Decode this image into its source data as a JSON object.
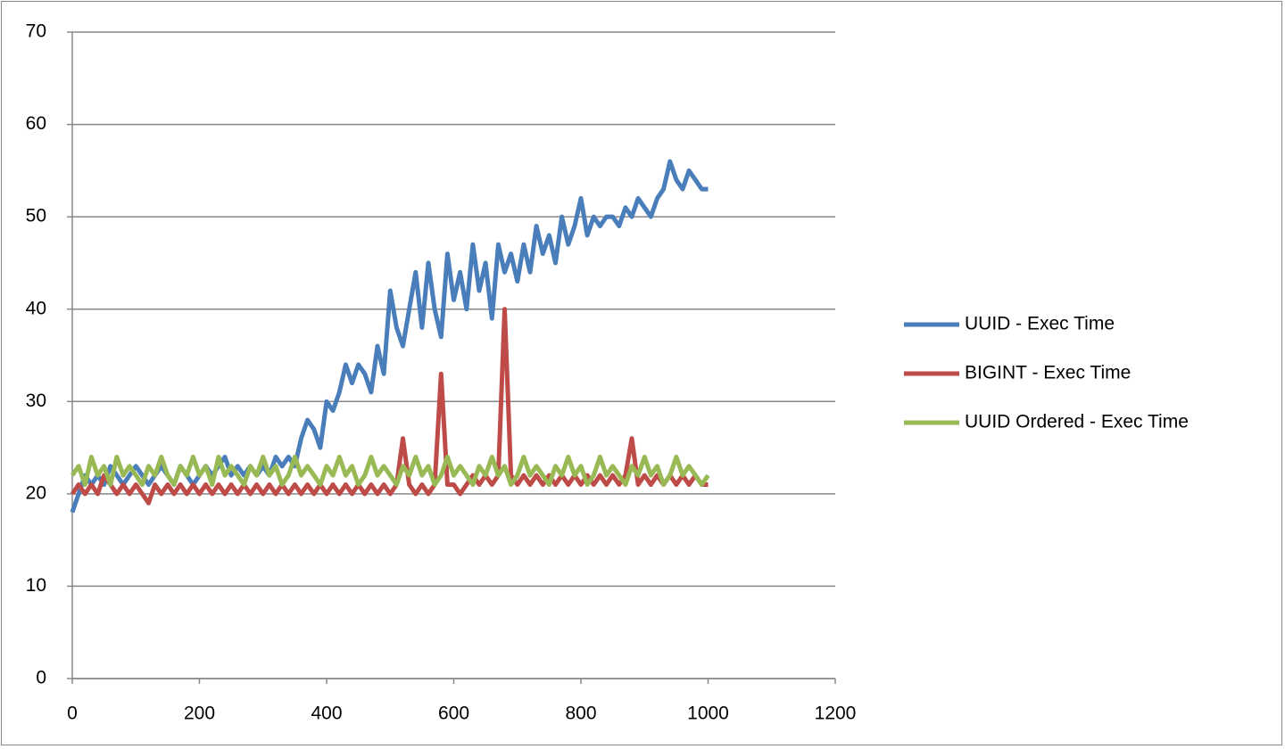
{
  "chart_data": {
    "type": "line",
    "x": [
      0,
      10,
      20,
      30,
      40,
      50,
      60,
      70,
      80,
      90,
      100,
      110,
      120,
      130,
      140,
      150,
      160,
      170,
      180,
      190,
      200,
      210,
      220,
      230,
      240,
      250,
      260,
      270,
      280,
      290,
      300,
      310,
      320,
      330,
      340,
      350,
      360,
      370,
      380,
      390,
      400,
      410,
      420,
      430,
      440,
      450,
      460,
      470,
      480,
      490,
      500,
      510,
      520,
      530,
      540,
      550,
      560,
      570,
      580,
      590,
      600,
      610,
      620,
      630,
      640,
      650,
      660,
      670,
      680,
      690,
      700,
      710,
      720,
      730,
      740,
      750,
      760,
      770,
      780,
      790,
      800,
      810,
      820,
      830,
      840,
      850,
      860,
      870,
      880,
      890,
      900,
      910,
      920,
      930,
      940,
      950,
      960,
      970,
      980,
      990,
      1000
    ],
    "series": [
      {
        "name": "UUID - Exec Time",
        "color": "#4a7ebb",
        "values": [
          18,
          20,
          22,
          21,
          22,
          21,
          23,
          22,
          21,
          22,
          23,
          22,
          21,
          22,
          23,
          22,
          21,
          23,
          22,
          21,
          22,
          23,
          22,
          23,
          24,
          22,
          23,
          22,
          23,
          22,
          23,
          22,
          24,
          23,
          24,
          23,
          26,
          28,
          27,
          25,
          30,
          29,
          31,
          34,
          32,
          34,
          33,
          31,
          36,
          33,
          42,
          38,
          36,
          40,
          44,
          38,
          45,
          40,
          37,
          46,
          41,
          44,
          40,
          47,
          42,
          45,
          39,
          47,
          44,
          46,
          43,
          47,
          44,
          49,
          46,
          48,
          45,
          50,
          47,
          49,
          52,
          48,
          50,
          49,
          50,
          50,
          49,
          51,
          50,
          52,
          51,
          50,
          52,
          53,
          56,
          54,
          53,
          55,
          54,
          53,
          53
        ]
      },
      {
        "name": "BIGINT - Exec Time",
        "color": "#be4b48",
        "values": [
          20,
          21,
          20,
          21,
          20,
          22,
          21,
          20,
          21,
          20,
          21,
          20,
          19,
          21,
          20,
          21,
          20,
          21,
          20,
          21,
          20,
          21,
          20,
          21,
          20,
          21,
          20,
          21,
          20,
          21,
          20,
          21,
          20,
          21,
          20,
          21,
          20,
          21,
          20,
          21,
          20,
          21,
          20,
          21,
          20,
          21,
          20,
          21,
          20,
          21,
          20,
          21,
          26,
          21,
          20,
          21,
          20,
          21,
          33,
          21,
          21,
          20,
          21,
          22,
          21,
          22,
          21,
          22,
          40,
          22,
          21,
          22,
          21,
          22,
          21,
          22,
          21,
          22,
          21,
          22,
          21,
          22,
          21,
          22,
          21,
          22,
          21,
          22,
          26,
          21,
          22,
          21,
          22,
          21,
          22,
          21,
          22,
          21,
          22,
          21,
          21
        ]
      },
      {
        "name": "UUID Ordered - Exec Time",
        "color": "#98b954",
        "values": [
          22,
          23,
          21,
          24,
          22,
          23,
          21,
          24,
          22,
          23,
          22,
          21,
          23,
          22,
          24,
          22,
          21,
          23,
          22,
          24,
          22,
          23,
          21,
          24,
          22,
          23,
          22,
          21,
          23,
          22,
          24,
          22,
          23,
          21,
          22,
          24,
          22,
          23,
          22,
          21,
          23,
          22,
          24,
          22,
          23,
          21,
          22,
          24,
          22,
          23,
          22,
          21,
          23,
          22,
          24,
          22,
          23,
          21,
          22,
          24,
          22,
          23,
          22,
          21,
          23,
          22,
          24,
          22,
          23,
          21,
          22,
          24,
          22,
          23,
          22,
          21,
          23,
          22,
          24,
          22,
          23,
          21,
          22,
          24,
          22,
          23,
          22,
          21,
          23,
          22,
          24,
          22,
          23,
          21,
          22,
          24,
          22,
          23,
          22,
          21,
          22
        ]
      }
    ],
    "xlim": [
      0,
      1200
    ],
    "xticks": [
      0,
      200,
      400,
      600,
      800,
      1000,
      1200
    ],
    "ylim": [
      0,
      70
    ],
    "yticks": [
      0,
      10,
      20,
      30,
      40,
      50,
      60,
      70
    ],
    "grid": true,
    "legend": "right"
  }
}
